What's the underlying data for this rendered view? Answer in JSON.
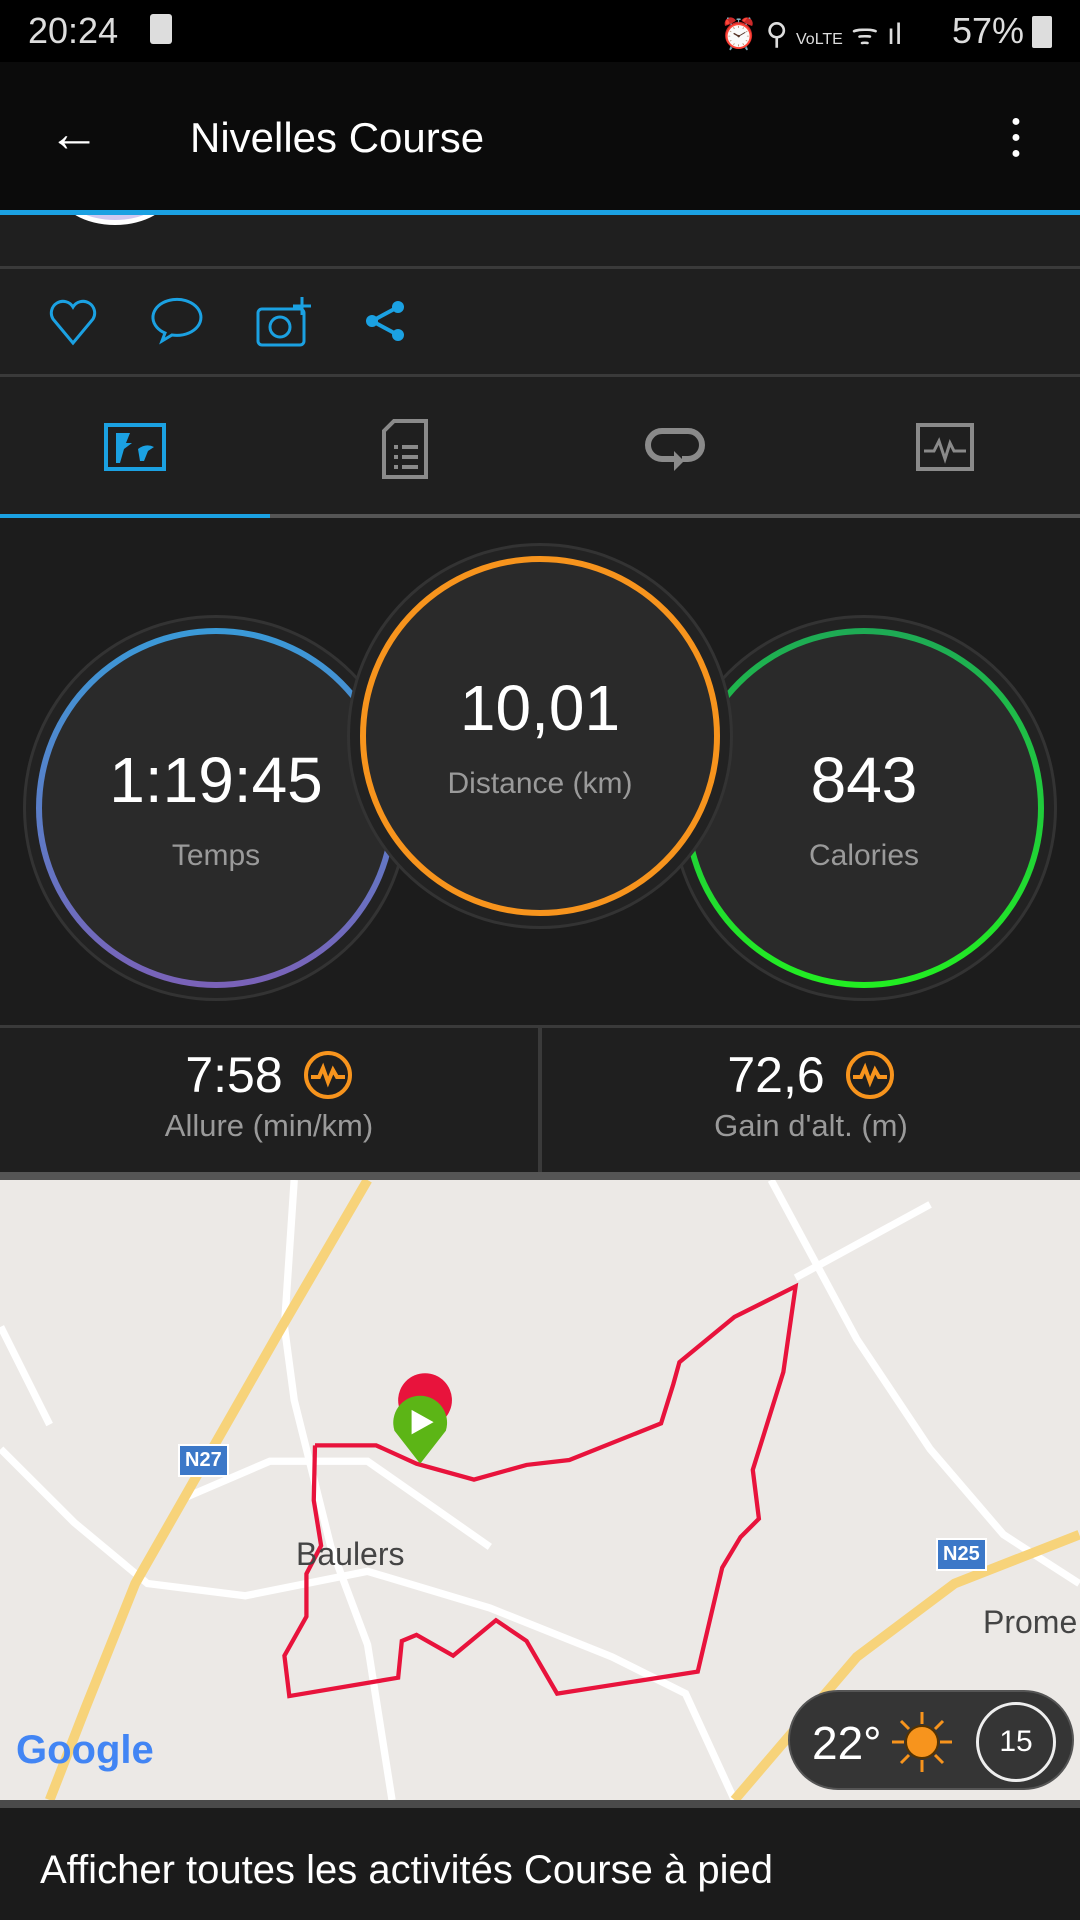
{
  "status_bar": {
    "time": "20:24",
    "battery": "57%",
    "network": "VoLTE"
  },
  "app_bar": {
    "title": "Nivelles Course"
  },
  "colors": {
    "accent": "#1ba1e2",
    "distance": "#f7941d",
    "calories": "#22dd33",
    "time_ring": "#5b8fd6",
    "route": "#e8133c"
  },
  "actions": [
    "heart-icon",
    "comment-icon",
    "add-photo-icon",
    "share-icon"
  ],
  "tabs": [
    {
      "icon": "map-stats-icon",
      "active": true
    },
    {
      "icon": "details-icon"
    },
    {
      "icon": "laps-icon"
    },
    {
      "icon": "chart-icon"
    }
  ],
  "stats": {
    "time": {
      "value": "1:19:45",
      "label": "Temps"
    },
    "distance": {
      "value": "10,01",
      "label": "Distance (km)"
    },
    "calories": {
      "value": "843",
      "label": "Calories"
    }
  },
  "metrics": [
    {
      "value": "7:58",
      "label": "Allure (min/km)"
    },
    {
      "value": "72,6",
      "label": "Gain d'alt. (m)"
    }
  ],
  "map": {
    "labels": {
      "n27": "N27",
      "n25": "N25",
      "town": "Baulers",
      "edge": "Prome",
      "google": "Google"
    },
    "weather": {
      "temp": "22°",
      "wind": "15"
    }
  },
  "footer": {
    "link": "Afficher toutes les activités Course à pied"
  }
}
